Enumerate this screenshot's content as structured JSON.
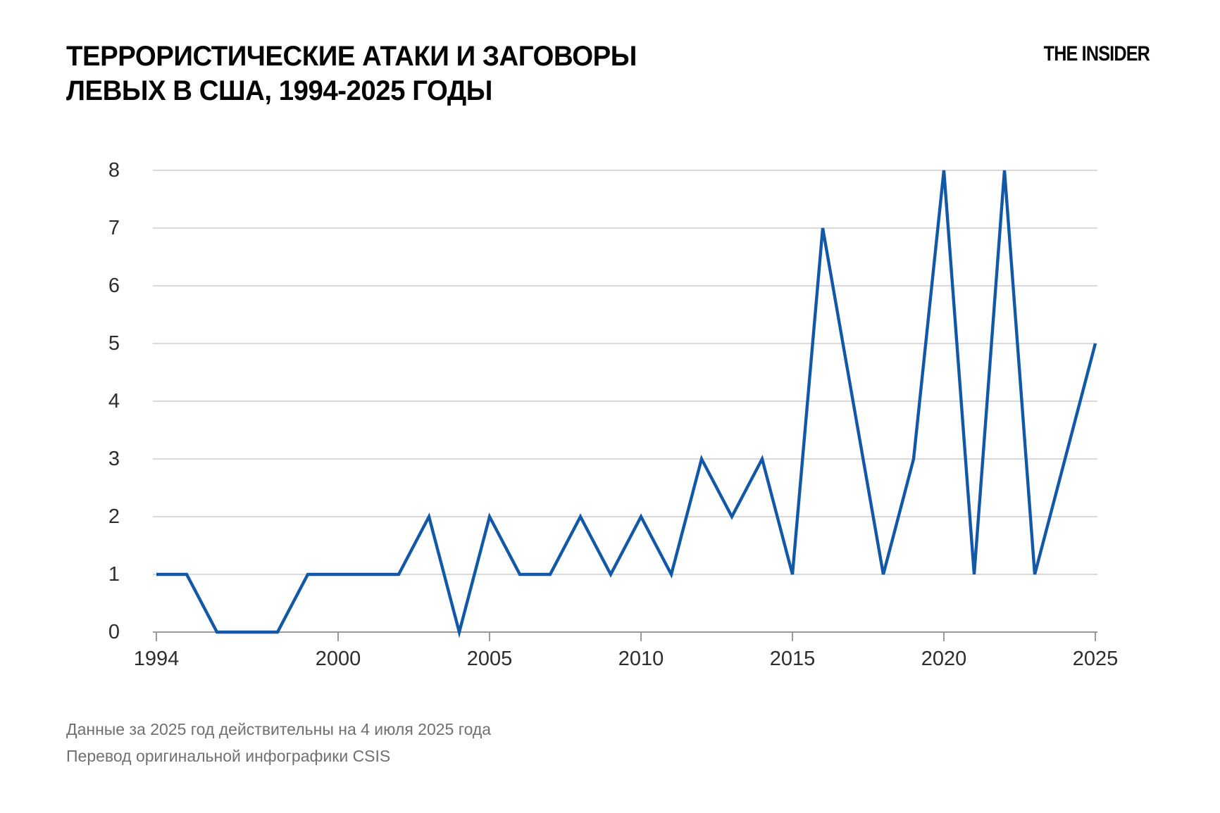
{
  "page": {
    "title_line1": "ТЕРРОРИСТИЧЕСКИЕ АТАКИ И ЗАГОВОРЫ",
    "title_line2": "ЛЕВЫХ В США, 1994-2025 ГОДЫ",
    "logo_text": "THE INSIDER",
    "footnote_line1": "Данные за 2025 год действительны на 4 июля 2025 года",
    "footnote_line2": "Перевод оригинальной инфографики CSIS"
  },
  "colors": {
    "line": "#1258a8",
    "gridline": "#d9d9d9",
    "axis": "#9a9a9a",
    "tick_label": "#2d2d2d",
    "title": "#050505",
    "footnote": "#707070",
    "background": "#ffffff"
  },
  "chart_data": {
    "type": "line",
    "title": "ТЕРРОРИСТИЧЕСКИЕ АТАКИ И ЗАГОВОРЫ ЛЕВЫХ В США, 1994-2025 ГОДЫ",
    "x": [
      1994,
      1995,
      1996,
      1997,
      1998,
      1999,
      2000,
      2001,
      2002,
      2003,
      2004,
      2005,
      2006,
      2007,
      2008,
      2009,
      2010,
      2011,
      2012,
      2013,
      2014,
      2015,
      2016,
      2017,
      2018,
      2019,
      2020,
      2021,
      2022,
      2023,
      2024,
      2025
    ],
    "values": [
      1,
      1,
      0,
      0,
      0,
      1,
      1,
      1,
      1,
      2,
      0,
      2,
      1,
      1,
      2,
      1,
      2,
      1,
      3,
      2,
      3,
      1,
      7,
      4,
      1,
      3,
      8,
      1,
      8,
      1,
      3,
      5
    ],
    "xlabel": "",
    "ylabel": "",
    "xlim": [
      1994,
      2025
    ],
    "ylim": [
      0,
      8
    ],
    "x_ticks": [
      1994,
      2000,
      2005,
      2010,
      2015,
      2020,
      2025
    ],
    "y_ticks": [
      0,
      1,
      2,
      3,
      4,
      5,
      6,
      7,
      8
    ],
    "grid": "horizontal",
    "legend": "none"
  }
}
